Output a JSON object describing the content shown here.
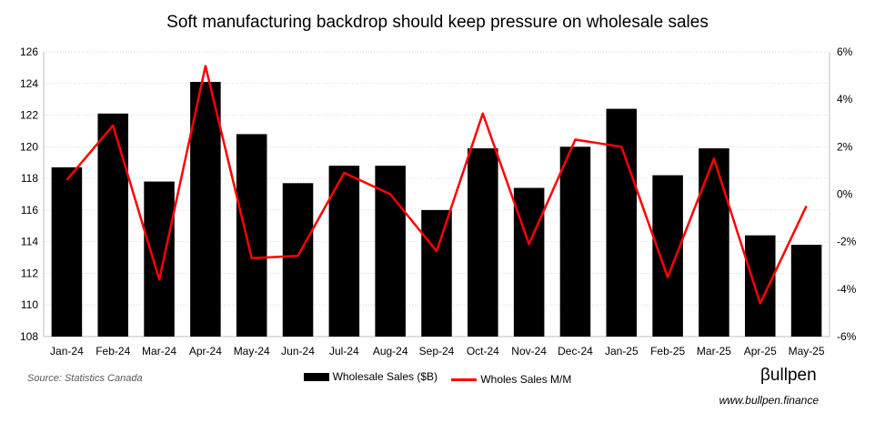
{
  "title": "Soft manufacturing backdrop should keep pressure on wholesale sales",
  "source": "Source: Statistics Canada",
  "brand": "βullpen",
  "url": "www.bullpen.finance",
  "colors": {
    "bars": "#000000",
    "line": "#ff0000",
    "grid": "#d9d9d9"
  },
  "chart_data": {
    "type": "bar",
    "title": "Soft manufacturing backdrop should keep pressure on wholesale sales",
    "categories": [
      "Jan-24",
      "Feb-24",
      "Mar-24",
      "Apr-24",
      "May-24",
      "Jun-24",
      "Jul-24",
      "Aug-24",
      "Sep-24",
      "Oct-24",
      "Nov-24",
      "Dec-24",
      "Jan-25",
      "Feb-25",
      "Mar-25",
      "Apr-25",
      "May-25"
    ],
    "series": [
      {
        "name": "Wholesale Sales ($B)",
        "type": "bar",
        "axis": "left",
        "values": [
          118.7,
          122.1,
          117.8,
          124.1,
          120.8,
          117.7,
          118.8,
          118.8,
          116.0,
          119.9,
          117.4,
          120.0,
          122.4,
          118.2,
          119.9,
          114.4,
          113.8
        ]
      },
      {
        "name": "Wholes Sales M/M",
        "type": "line",
        "axis": "right",
        "values": [
          0.6,
          2.9,
          -3.6,
          5.4,
          -2.7,
          -2.6,
          0.9,
          0.0,
          -2.4,
          3.4,
          -2.1,
          2.3,
          2.0,
          -3.5,
          1.5,
          -4.6,
          -0.5
        ]
      }
    ],
    "ylim": [
      108,
      126
    ],
    "yticks": [
      "108",
      "110",
      "112",
      "114",
      "116",
      "118",
      "120",
      "122",
      "124",
      "126"
    ],
    "y2lim": [
      -6,
      6
    ],
    "y2ticks": [
      "-6%",
      "-4%",
      "-2%",
      "0%",
      "2%",
      "4%",
      "6%"
    ],
    "grid": true,
    "legend": "bottom"
  }
}
